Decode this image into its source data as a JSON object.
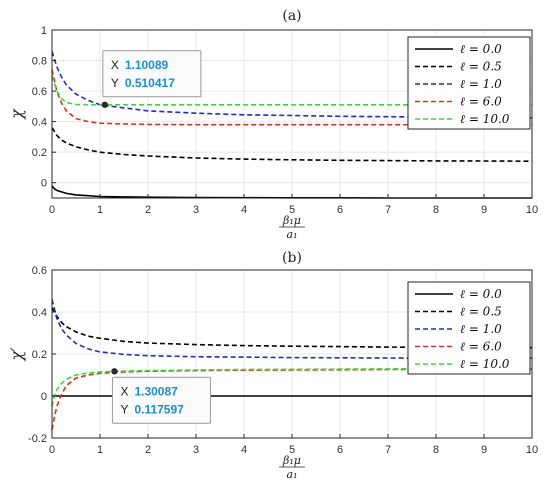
{
  "chart_data": [
    {
      "type": "line",
      "title": "(a)",
      "xlabel_num": "β₁μ",
      "xlabel_den": "a₁",
      "ylabel": "χ",
      "xlim": [
        0,
        10
      ],
      "ylim": [
        -0.1,
        1
      ],
      "xticks": [
        "0",
        "1",
        "2",
        "3",
        "4",
        "5",
        "6",
        "7",
        "8",
        "9",
        "10"
      ],
      "yticks": [
        "0",
        "0.2",
        "0.4",
        "0.6",
        "0.8",
        "1"
      ],
      "ytick_values": [
        0,
        0.2,
        0.4,
        0.6,
        0.8,
        1
      ],
      "grid": true,
      "legend_position": "top-right",
      "series": [
        {
          "name": "ℓ = 0.0",
          "color": "#000000",
          "dashed": false,
          "x": [
            0,
            0.05,
            0.1,
            0.2,
            0.3,
            0.5,
            0.75,
            1,
            1.5,
            2,
            3,
            4,
            5,
            6,
            7,
            8,
            9,
            10
          ],
          "y": [
            -0.02,
            -0.04,
            -0.05,
            -0.06,
            -0.07,
            -0.08,
            -0.085,
            -0.09,
            -0.093,
            -0.095,
            -0.097,
            -0.098,
            -0.099,
            -0.099,
            -0.1,
            -0.1,
            -0.1,
            -0.1
          ]
        },
        {
          "name": "ℓ = 0.5",
          "color": "#000000",
          "dashed": true,
          "x": [
            0,
            0.1,
            0.2,
            0.3,
            0.5,
            0.75,
            1,
            1.5,
            2,
            3,
            4,
            5,
            6,
            7,
            8,
            9,
            10
          ],
          "y": [
            0.36,
            0.31,
            0.28,
            0.26,
            0.235,
            0.215,
            0.2,
            0.185,
            0.175,
            0.162,
            0.155,
            0.15,
            0.147,
            0.145,
            0.143,
            0.142,
            0.141
          ]
        },
        {
          "name": "ℓ = 1.0",
          "color": "#1f2fbf",
          "dashed": true,
          "x": [
            0,
            0.1,
            0.2,
            0.3,
            0.5,
            0.75,
            1,
            1.5,
            2,
            3,
            4,
            5,
            6,
            7,
            8,
            9,
            10
          ],
          "y": [
            0.86,
            0.76,
            0.69,
            0.64,
            0.58,
            0.54,
            0.51,
            0.49,
            0.47,
            0.455,
            0.445,
            0.44,
            0.435,
            0.432,
            0.43,
            0.428,
            0.425
          ]
        },
        {
          "name": "ℓ = 6.0",
          "color": "#e0301e",
          "dashed": true,
          "x": [
            0,
            0.1,
            0.2,
            0.3,
            0.5,
            0.75,
            1,
            1.5,
            2,
            3,
            4,
            5,
            6,
            7,
            8,
            9,
            10
          ],
          "y": [
            0.74,
            0.6,
            0.52,
            0.47,
            0.42,
            0.4,
            0.39,
            0.385,
            0.382,
            0.38,
            0.38,
            0.38,
            0.38,
            0.38,
            0.38,
            0.38,
            0.38
          ]
        },
        {
          "name": "ℓ = 10.0",
          "color": "#33dd33",
          "dashed": true,
          "x": [
            0,
            0.1,
            0.2,
            0.3,
            0.5,
            0.75,
            1,
            1.5,
            2,
            3,
            4,
            5,
            6,
            7,
            8,
            9,
            10
          ],
          "y": [
            0.7,
            0.6,
            0.55,
            0.525,
            0.512,
            0.511,
            0.51,
            0.51,
            0.51,
            0.51,
            0.51,
            0.51,
            0.51,
            0.51,
            0.51,
            0.51,
            0.51
          ]
        }
      ],
      "datatip": {
        "x": 1.10089,
        "y": 0.510417,
        "x_label": "X",
        "y_label": "Y",
        "x_text": "1.10089",
        "y_text": "0.510417"
      }
    },
    {
      "type": "line",
      "title": "(b)",
      "xlabel_num": "β₁μ",
      "xlabel_den": "a₁",
      "ylabel": "χ′",
      "xlim": [
        0,
        10
      ],
      "ylim": [
        -0.2,
        0.6
      ],
      "xticks": [
        "0",
        "1",
        "2",
        "3",
        "4",
        "5",
        "6",
        "7",
        "8",
        "9",
        "10"
      ],
      "yticks": [
        "-0.2",
        "0",
        "0.2",
        "0.4",
        "0.6"
      ],
      "ytick_values": [
        -0.2,
        0,
        0.2,
        0.4,
        0.6
      ],
      "grid": true,
      "legend_position": "top-right",
      "series": [
        {
          "name": "ℓ = 0.0",
          "color": "#000000",
          "dashed": false,
          "x": [
            0,
            10
          ],
          "y": [
            0,
            0
          ]
        },
        {
          "name": "ℓ = 0.5",
          "color": "#000000",
          "dashed": true,
          "x": [
            0,
            0.1,
            0.2,
            0.3,
            0.5,
            0.75,
            1,
            1.5,
            2,
            3,
            4,
            5,
            6,
            7,
            8,
            9,
            10
          ],
          "y": [
            0.42,
            0.38,
            0.35,
            0.33,
            0.305,
            0.285,
            0.275,
            0.26,
            0.252,
            0.245,
            0.24,
            0.237,
            0.235,
            0.233,
            0.232,
            0.231,
            0.23
          ]
        },
        {
          "name": "ℓ = 1.0",
          "color": "#1f2fbf",
          "dashed": true,
          "x": [
            0,
            0.1,
            0.2,
            0.3,
            0.5,
            0.75,
            1,
            1.5,
            2,
            3,
            4,
            5,
            6,
            7,
            8,
            9,
            10
          ],
          "y": [
            0.46,
            0.37,
            0.32,
            0.29,
            0.25,
            0.225,
            0.21,
            0.198,
            0.192,
            0.187,
            0.185,
            0.183,
            0.182,
            0.181,
            0.18,
            0.18,
            0.18
          ]
        },
        {
          "name": "ℓ = 6.0",
          "color": "#e0301e",
          "dashed": true,
          "x": [
            0,
            0.05,
            0.1,
            0.2,
            0.3,
            0.5,
            0.75,
            1,
            1.5,
            2,
            3,
            4,
            5,
            6,
            7,
            8,
            9,
            10
          ],
          "y": [
            -0.16,
            -0.1,
            -0.05,
            0.01,
            0.05,
            0.085,
            0.1,
            0.108,
            0.115,
            0.118,
            0.121,
            0.123,
            0.124,
            0.125,
            0.126,
            0.126,
            0.127,
            0.127
          ]
        },
        {
          "name": "ℓ = 10.0",
          "color": "#33dd33",
          "dashed": true,
          "x": [
            0,
            0.05,
            0.1,
            0.2,
            0.3,
            0.5,
            0.75,
            1,
            1.3,
            1.5,
            2,
            3,
            4,
            5,
            6,
            7,
            8,
            9,
            10
          ],
          "y": [
            -0.05,
            0.0,
            0.03,
            0.06,
            0.08,
            0.1,
            0.11,
            0.115,
            0.1176,
            0.119,
            0.121,
            0.124,
            0.126,
            0.127,
            0.128,
            0.129,
            0.13,
            0.13,
            0.13
          ]
        }
      ],
      "datatip": {
        "x": 1.30087,
        "y": 0.117597,
        "x_label": "X",
        "y_label": "Y",
        "x_text": "1.30087",
        "y_text": "0.117597"
      }
    }
  ]
}
